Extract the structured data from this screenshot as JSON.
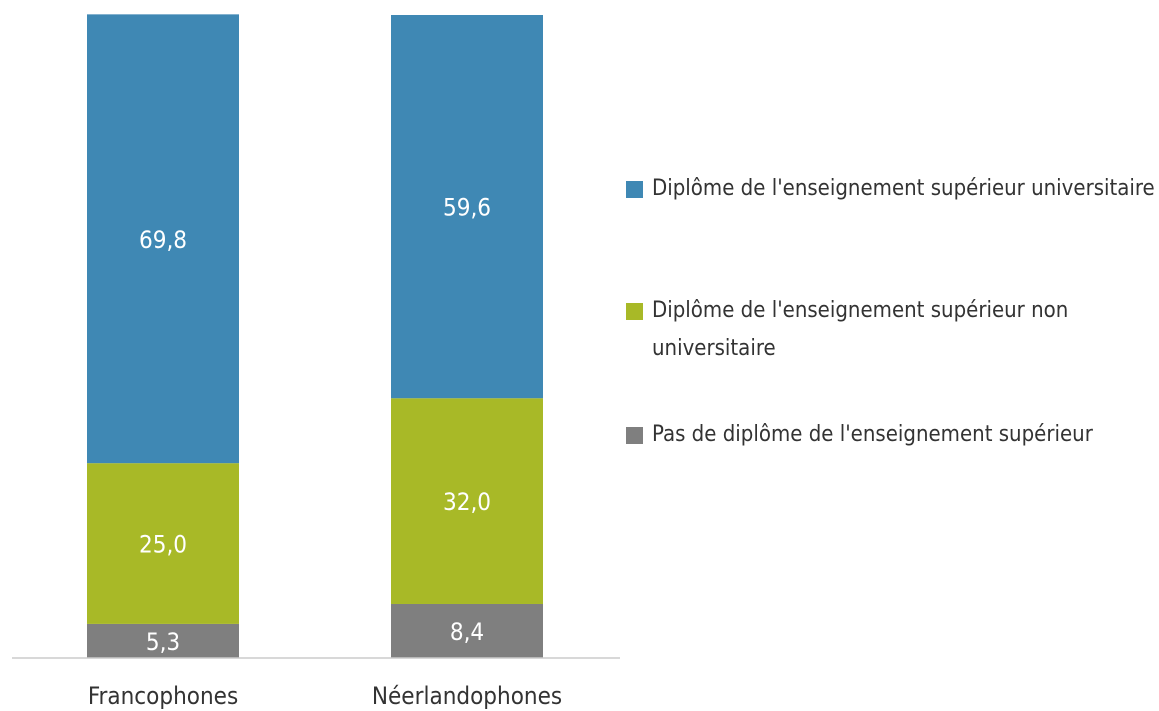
{
  "chart_data": {
    "type": "stacked_bar",
    "categories": [
      "Francophones",
      "Néerlandophones"
    ],
    "series": [
      {
        "name": "Pas de diplôme de l'enseignement supérieur",
        "color": "#7f7f7f",
        "values": [
          5.3,
          8.4
        ],
        "value_labels": [
          "5,3",
          "8,4"
        ]
      },
      {
        "name": "Diplôme de l'enseignement supérieur non universitaire",
        "color": "#a8b927",
        "values": [
          25.0,
          32.0
        ],
        "value_labels": [
          "25,0",
          "32,0"
        ]
      },
      {
        "name": "Diplôme de l'enseignement supérieur universitaire",
        "color": "#3f88b4",
        "values": [
          69.8,
          59.6
        ],
        "value_labels": [
          "69,8",
          "59,6"
        ]
      }
    ],
    "ylim": [
      0,
      100
    ],
    "legend": "right"
  }
}
